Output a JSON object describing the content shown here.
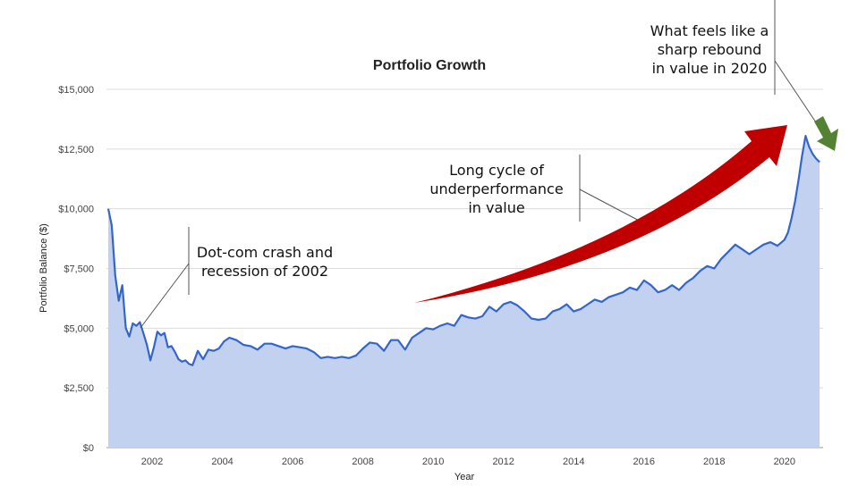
{
  "chart_data": {
    "type": "area",
    "title": "Portfolio Growth",
    "xlabel": "Year",
    "ylabel": "Portfolio Balance ($)",
    "xlim": [
      2000.7,
      2021.1
    ],
    "ylim": [
      0,
      15000
    ],
    "x_ticks": [
      {
        "value": 2002,
        "label": "2002"
      },
      {
        "value": 2004,
        "label": "2004"
      },
      {
        "value": 2006,
        "label": "2006"
      },
      {
        "value": 2008,
        "label": "2008"
      },
      {
        "value": 2010,
        "label": "2010"
      },
      {
        "value": 2012,
        "label": "2012"
      },
      {
        "value": 2014,
        "label": "2014"
      },
      {
        "value": 2016,
        "label": "2016"
      },
      {
        "value": 2018,
        "label": "2018"
      },
      {
        "value": 2020,
        "label": "2020"
      }
    ],
    "y_ticks": [
      {
        "value": 0,
        "label": "$0"
      },
      {
        "value": 2500,
        "label": "$2,500"
      },
      {
        "value": 5000,
        "label": "$5,000"
      },
      {
        "value": 7500,
        "label": "$7,500"
      },
      {
        "value": 10000,
        "label": "$10,000"
      },
      {
        "value": 12500,
        "label": "$12,500"
      },
      {
        "value": 15000,
        "label": "$15,000"
      }
    ],
    "grid": true,
    "line_color": "#3366cc",
    "fill_color": "#c2d1ef",
    "x": [
      2000.75,
      2000.85,
      2000.95,
      2001.05,
      2001.15,
      2001.25,
      2001.35,
      2001.45,
      2001.55,
      2001.65,
      2001.75,
      2001.85,
      2001.95,
      2002.05,
      2002.15,
      2002.25,
      2002.35,
      2002.45,
      2002.55,
      2002.65,
      2002.75,
      2002.85,
      2002.95,
      2003.05,
      2003.15,
      2003.3,
      2003.45,
      2003.6,
      2003.75,
      2003.9,
      2004.05,
      2004.2,
      2004.4,
      2004.6,
      2004.8,
      2005.0,
      2005.2,
      2005.4,
      2005.6,
      2005.8,
      2006.0,
      2006.2,
      2006.4,
      2006.6,
      2006.8,
      2007.0,
      2007.2,
      2007.4,
      2007.6,
      2007.8,
      2008.0,
      2008.2,
      2008.4,
      2008.6,
      2008.8,
      2009.0,
      2009.2,
      2009.4,
      2009.6,
      2009.8,
      2010.0,
      2010.2,
      2010.4,
      2010.6,
      2010.8,
      2011.0,
      2011.2,
      2011.4,
      2011.6,
      2011.8,
      2012.0,
      2012.2,
      2012.4,
      2012.6,
      2012.8,
      2013.0,
      2013.2,
      2013.4,
      2013.6,
      2013.8,
      2014.0,
      2014.2,
      2014.4,
      2014.6,
      2014.8,
      2015.0,
      2015.2,
      2015.4,
      2015.6,
      2015.8,
      2016.0,
      2016.2,
      2016.4,
      2016.6,
      2016.8,
      2017.0,
      2017.2,
      2017.4,
      2017.6,
      2017.8,
      2018.0,
      2018.2,
      2018.4,
      2018.6,
      2018.8,
      2019.0,
      2019.2,
      2019.4,
      2019.6,
      2019.8,
      2020.0,
      2020.1,
      2020.2,
      2020.3,
      2020.4,
      2020.5,
      2020.6,
      2020.7,
      2020.8,
      2020.9,
      2021.0
    ],
    "values": [
      10000,
      9300,
      7200,
      6150,
      6800,
      5000,
      4650,
      5200,
      5100,
      5250,
      4800,
      4300,
      3650,
      4200,
      4850,
      4700,
      4800,
      4200,
      4250,
      4000,
      3700,
      3600,
      3650,
      3500,
      3450,
      4050,
      3700,
      4100,
      4050,
      4150,
      4450,
      4600,
      4500,
      4300,
      4250,
      4100,
      4350,
      4350,
      4250,
      4150,
      4250,
      4200,
      4150,
      4000,
      3750,
      3800,
      3750,
      3800,
      3750,
      3850,
      4150,
      4400,
      4350,
      4050,
      4500,
      4500,
      4100,
      4600,
      4800,
      5000,
      4950,
      5100,
      5200,
      5100,
      5550,
      5450,
      5400,
      5500,
      5900,
      5700,
      6000,
      6100,
      5950,
      5700,
      5400,
      5350,
      5400,
      5700,
      5800,
      6000,
      5700,
      5800,
      6000,
      6200,
      6100,
      6300,
      6400,
      6500,
      6700,
      6600,
      7000,
      6800,
      6500,
      6600,
      6800,
      6600,
      6900,
      7100,
      7400,
      7600,
      7500,
      7900,
      8200,
      8500,
      8300,
      8100,
      8300,
      8500,
      8600,
      8450,
      8700,
      9000,
      9600,
      10300,
      11200,
      12200,
      13050,
      12600,
      12300,
      12100,
      11950
    ],
    "annotations": [
      {
        "id": "dotcom",
        "lines": [
          "Dot-com crash and",
          "recession of 2002"
        ]
      },
      {
        "id": "underperf",
        "lines": [
          "Long cycle of",
          "underperformance",
          "in value"
        ]
      },
      {
        "id": "rebound",
        "lines": [
          "What feels like a",
          "sharp rebound",
          "in value in 2020"
        ]
      }
    ],
    "arrows": [
      {
        "id": "long-cycle-arrow",
        "color": "#c00000"
      },
      {
        "id": "rebound-arrow",
        "color": "#548235"
      }
    ]
  }
}
